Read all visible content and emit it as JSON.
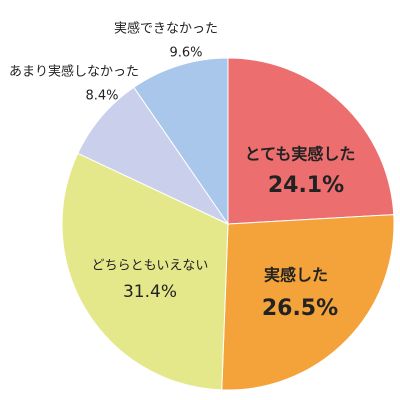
{
  "chart_data": {
    "type": "pie",
    "categories": [
      "とても実感した",
      "実感した",
      "どちらともいえない",
      "あまり実感しなかった",
      "実感できなかった"
    ],
    "values": [
      24.1,
      26.5,
      31.4,
      8.4,
      9.6
    ],
    "value_labels": [
      "24.1%",
      "26.5%",
      "31.4%",
      "8.4%",
      "9.6%"
    ],
    "colors": [
      "#ec6e6f",
      "#f4a33b",
      "#e4e88b",
      "#cad0ec",
      "#a8c7ea"
    ]
  }
}
